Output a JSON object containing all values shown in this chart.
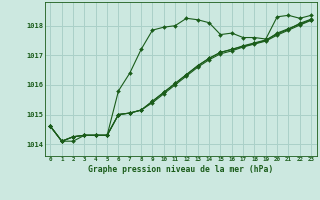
{
  "title": "Graphe pression niveau de la mer (hPa)",
  "bg_color": "#cce8e0",
  "grid_color": "#aad0c8",
  "line_color": "#1a5c1a",
  "xlim": [
    -0.5,
    23.5
  ],
  "ylim": [
    1013.6,
    1018.8
  ],
  "yticks": [
    1014,
    1015,
    1016,
    1017,
    1018
  ],
  "xtick_labels": [
    "0",
    "1",
    "2",
    "3",
    "4",
    "5",
    "6",
    "7",
    "8",
    "9",
    "10",
    "11",
    "12",
    "13",
    "14",
    "15",
    "16",
    "17",
    "18",
    "19",
    "20",
    "21",
    "22",
    "23"
  ],
  "series1_x": [
    0,
    1,
    2,
    3,
    4,
    5,
    6,
    7,
    8,
    9,
    10,
    11,
    12,
    13,
    14,
    15,
    16,
    17,
    18,
    19,
    20,
    21,
    22,
    23
  ],
  "series1_y": [
    1014.6,
    1014.1,
    1014.1,
    1014.3,
    1014.3,
    1014.3,
    1015.8,
    1016.4,
    1017.2,
    1017.85,
    1017.95,
    1018.0,
    1018.25,
    1018.2,
    1018.1,
    1017.7,
    1017.75,
    1017.6,
    1017.6,
    1017.55,
    1018.3,
    1018.35,
    1018.25,
    1018.35
  ],
  "series2_x": [
    0,
    1,
    2,
    3,
    4,
    5,
    6,
    7,
    8,
    9,
    10,
    11,
    12,
    13,
    14,
    15,
    16,
    17,
    18,
    19,
    20,
    21,
    22,
    23
  ],
  "series2_y": [
    1014.6,
    1014.1,
    1014.25,
    1014.3,
    1014.3,
    1014.3,
    1015.0,
    1015.05,
    1015.15,
    1015.45,
    1015.75,
    1016.05,
    1016.35,
    1016.65,
    1016.9,
    1017.1,
    1017.2,
    1017.3,
    1017.4,
    1017.5,
    1017.75,
    1017.9,
    1018.05,
    1018.2
  ],
  "series3_x": [
    0,
    1,
    2,
    3,
    4,
    5,
    6,
    7,
    8,
    9,
    10,
    11,
    12,
    13,
    14,
    15,
    16,
    17,
    18,
    19,
    20,
    21,
    22,
    23
  ],
  "series3_y": [
    1014.6,
    1014.1,
    1014.25,
    1014.3,
    1014.3,
    1014.3,
    1015.0,
    1015.05,
    1015.15,
    1015.45,
    1015.75,
    1016.05,
    1016.35,
    1016.65,
    1016.9,
    1017.1,
    1017.2,
    1017.32,
    1017.42,
    1017.52,
    1017.72,
    1017.88,
    1018.08,
    1018.22
  ],
  "series4_x": [
    0,
    1,
    2,
    3,
    4,
    5,
    6,
    7,
    8,
    9,
    10,
    11,
    12,
    13,
    14,
    15,
    16,
    17,
    18,
    19,
    20,
    21,
    22,
    23
  ],
  "series4_y": [
    1014.6,
    1014.1,
    1014.25,
    1014.3,
    1014.3,
    1014.3,
    1015.0,
    1015.05,
    1015.15,
    1015.4,
    1015.7,
    1016.0,
    1016.3,
    1016.6,
    1016.85,
    1017.05,
    1017.15,
    1017.28,
    1017.38,
    1017.48,
    1017.68,
    1017.85,
    1018.02,
    1018.18
  ]
}
